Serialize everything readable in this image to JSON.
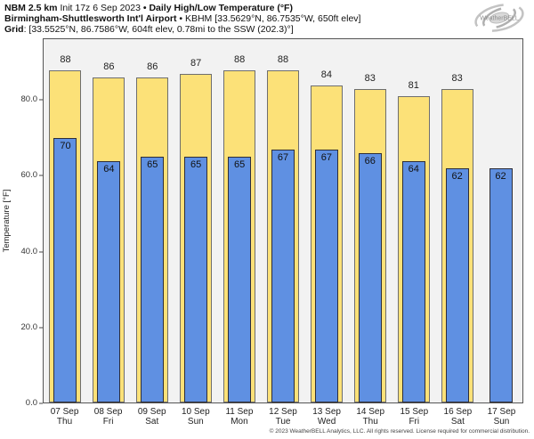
{
  "header": {
    "line1_bold": "NBM 2.5 km",
    "line1_regular": " Init 17z 6 Sep 2023 ",
    "line1_bullet": "• ",
    "line1_bold2": "Daily High/Low Temperature (°F)",
    "line2_bold": "Birmingham-Shuttlesworth Int'l Airport",
    "line2_regular": " • KBHM [33.5629°N, 86.7535°W, 650ft elev]",
    "line3_bold": "Grid",
    "line3_regular": ": [33.5525°N, 86.7586°W, 604ft elev, 0.78mi to the SSW (202.3)°]"
  },
  "logo": {
    "text": "WeatherBELL"
  },
  "footer": {
    "copyright": "© 2023 WeatherBELL Analytics, LLC. All rights reserved. License required for commercial distribution."
  },
  "colors": {
    "plot_background": "#f2f2f2",
    "high_bar_fill": "#fce178",
    "high_bar_border": "#6e6e6e",
    "low_bar_fill": "#5f90e2",
    "low_bar_border": "#2e2e38",
    "spine": "#555555"
  },
  "chart_data": {
    "type": "bar",
    "title": "NBM 2.5 km Daily High/Low Temperature (°F) — Birmingham-Shuttlesworth Int'l Airport (KBHM)",
    "xlabel": "",
    "ylabel": "Temperature [°F]",
    "ylim": [
      0,
      96.2
    ],
    "grid": false,
    "legend_position": "none",
    "categories": [
      {
        "date": "07 Sep",
        "day": "Thu"
      },
      {
        "date": "08 Sep",
        "day": "Fri"
      },
      {
        "date": "09 Sep",
        "day": "Sat"
      },
      {
        "date": "10 Sep",
        "day": "Sun"
      },
      {
        "date": "11 Sep",
        "day": "Mon"
      },
      {
        "date": "12 Sep",
        "day": "Tue"
      },
      {
        "date": "13 Sep",
        "day": "Wed"
      },
      {
        "date": "14 Sep",
        "day": "Thu"
      },
      {
        "date": "15 Sep",
        "day": "Fri"
      },
      {
        "date": "16 Sep",
        "day": "Sat"
      },
      {
        "date": "17 Sep",
        "day": "Sun"
      }
    ],
    "series": [
      {
        "name": "Daily High",
        "color": "#fce178",
        "values": [
          88,
          86,
          86,
          87,
          88,
          88,
          84,
          83,
          81,
          83,
          null
        ]
      },
      {
        "name": "Daily Low",
        "color": "#5f90e2",
        "values": [
          70,
          64,
          65,
          65,
          65,
          67,
          67,
          66,
          64,
          62,
          62
        ]
      }
    ],
    "yticks": [
      {
        "value": 0,
        "label": "0.0"
      },
      {
        "value": 20,
        "label": "20.0"
      },
      {
        "value": 40,
        "label": "40.0"
      },
      {
        "value": 60,
        "label": "60.0"
      },
      {
        "value": 80,
        "label": "80.0"
      }
    ]
  }
}
